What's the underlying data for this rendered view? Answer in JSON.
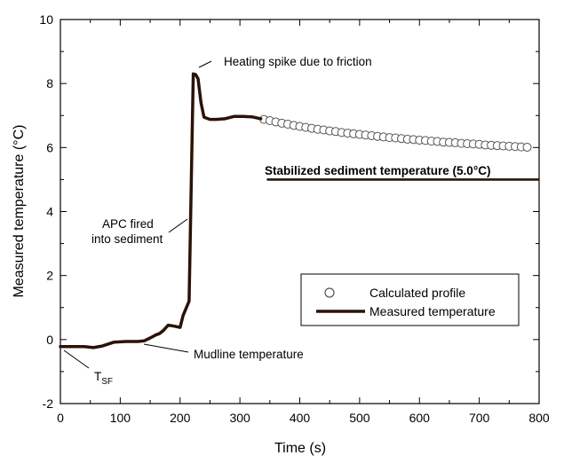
{
  "chart_data": {
    "type": "line",
    "xlabel": "Time (s)",
    "ylabel": "Measured temperature (°C)",
    "xlim": [
      0,
      800
    ],
    "ylim": [
      -2,
      10
    ],
    "x_ticks": [
      0,
      100,
      200,
      300,
      400,
      500,
      600,
      700,
      800
    ],
    "y_ticks": [
      -2,
      0,
      2,
      4,
      6,
      8,
      10
    ],
    "grid": false,
    "legend_placement": "bottom-right",
    "series": [
      {
        "name": "Measured temperature",
        "style": "thick-line",
        "color": "#2b1207",
        "x": [
          0,
          20,
          40,
          55,
          70,
          90,
          110,
          130,
          140,
          150,
          160,
          165,
          172,
          180,
          190,
          200,
          205,
          215,
          222,
          226,
          230,
          235,
          240,
          250,
          260,
          275,
          290,
          305,
          320,
          335
        ],
        "y": [
          -0.22,
          -0.22,
          -0.22,
          -0.25,
          -0.2,
          -0.08,
          -0.06,
          -0.06,
          -0.04,
          0.05,
          0.15,
          0.18,
          0.28,
          0.45,
          0.42,
          0.38,
          0.75,
          1.2,
          8.3,
          8.28,
          8.15,
          7.4,
          6.95,
          6.88,
          6.88,
          6.9,
          6.97,
          6.97,
          6.96,
          6.9
        ]
      },
      {
        "name": "Calculated profile",
        "style": "open-circles",
        "color": "#555555",
        "x": [
          340,
          350,
          360,
          370,
          380,
          390,
          400,
          410,
          420,
          430,
          440,
          450,
          460,
          470,
          480,
          490,
          500,
          510,
          520,
          530,
          540,
          550,
          560,
          570,
          580,
          590,
          600,
          610,
          620,
          630,
          640,
          650,
          660,
          670,
          680,
          690,
          700,
          710,
          720,
          730,
          740,
          750,
          760,
          770,
          780
        ],
        "y": [
          6.88,
          6.84,
          6.8,
          6.76,
          6.73,
          6.69,
          6.66,
          6.63,
          6.6,
          6.57,
          6.55,
          6.52,
          6.5,
          6.47,
          6.45,
          6.43,
          6.41,
          6.39,
          6.37,
          6.35,
          6.33,
          6.31,
          6.3,
          6.28,
          6.26,
          6.25,
          6.23,
          6.22,
          6.2,
          6.19,
          6.17,
          6.16,
          6.15,
          6.13,
          6.12,
          6.11,
          6.1,
          6.08,
          6.07,
          6.06,
          6.05,
          6.04,
          6.03,
          6.02,
          6.01
        ]
      }
    ],
    "reference_line": {
      "label": "Stabilized sediment temperature (5.0°C)",
      "y": 5.0,
      "x_start": 345,
      "x_end": 800
    },
    "annotations": {
      "spike": "Heating spike due to friction",
      "apc_line1": "APC fired",
      "apc_line2": "into sediment",
      "mudline": "Mudline temperature",
      "tsf_main": "T",
      "tsf_sub": "SF"
    }
  }
}
